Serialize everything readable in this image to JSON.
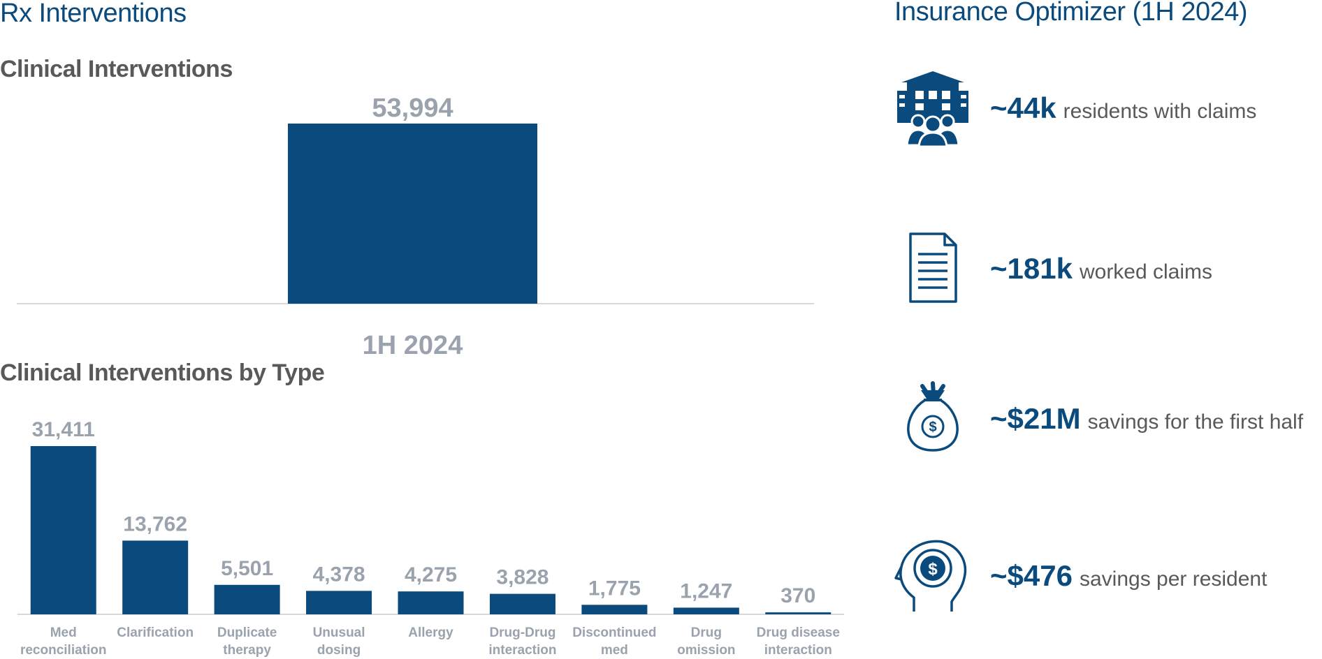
{
  "left_heading": "Rx Interventions",
  "right_heading": "Insurance Optimizer (1H 2024)",
  "chart_data": [
    {
      "type": "bar",
      "title": "Clinical Interventions",
      "categories": [
        "1H 2024"
      ],
      "values": [
        53994
      ],
      "value_labels": [
        "53,994"
      ],
      "ylim": [
        0,
        53994
      ]
    },
    {
      "type": "bar",
      "title": "Clinical Interventions by Type",
      "categories": [
        [
          "Med",
          "reconciliation"
        ],
        [
          "Clarification"
        ],
        [
          "Duplicate",
          "therapy"
        ],
        [
          "Unusual",
          "dosing"
        ],
        [
          "Allergy"
        ],
        [
          "Drug-Drug",
          "interaction"
        ],
        [
          "Discontinued",
          "med"
        ],
        [
          "Drug",
          "omission"
        ],
        [
          "Drug disease",
          "interaction"
        ]
      ],
      "values": [
        31411,
        13762,
        5501,
        4378,
        4275,
        3828,
        1775,
        1247,
        370
      ],
      "value_labels": [
        "31,411",
        "13,762",
        "5,501",
        "4,378",
        "4,275",
        "3,828",
        "1,775",
        "1,247",
        "370"
      ],
      "ylim": [
        0,
        31411
      ]
    }
  ],
  "metrics": [
    {
      "icon": "building-residents-icon",
      "value": "~44k",
      "label": "residents with claims"
    },
    {
      "icon": "document-icon",
      "value": "~181k",
      "label": "worked claims"
    },
    {
      "icon": "money-bag-icon",
      "value": "~$21M",
      "label": "savings for the first half"
    },
    {
      "icon": "head-dollar-icon",
      "value": "~$476",
      "label": "savings per resident"
    }
  ],
  "colors": {
    "bar": "#0a4a7c",
    "label": "#9aa3ad",
    "text": "#595959",
    "axis": "#d9d9d9"
  }
}
